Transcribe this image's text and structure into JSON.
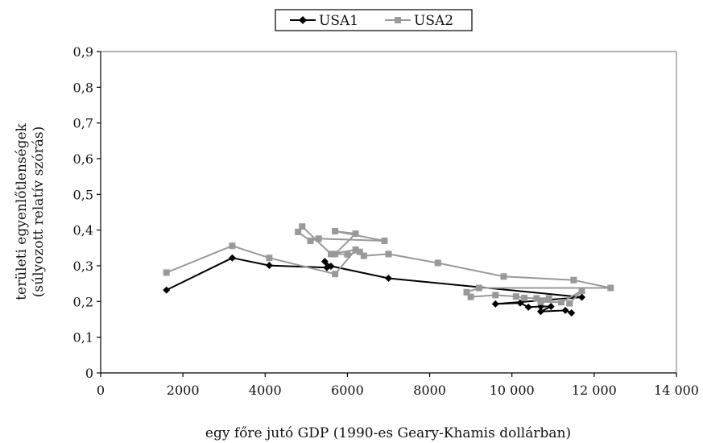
{
  "chart_data": {
    "type": "line",
    "xlabel": "egy főre jutó GDP (1990-es Geary-Khamis dollárban)",
    "ylabel_line1": "területi egyenlőtlenségek",
    "ylabel_line2": "(súlyozott relatív szórás)",
    "xlim": [
      0,
      14000
    ],
    "ylim": [
      0,
      0.9
    ],
    "x_ticks": [
      0,
      2000,
      4000,
      6000,
      8000,
      10000,
      12000,
      14000
    ],
    "x_tick_labels": [
      "0",
      "2000",
      "4000",
      "6000",
      "8000",
      "10 000",
      "12 000",
      "14 000"
    ],
    "y_ticks": [
      0,
      0.1,
      0.2,
      0.3,
      0.4,
      0.5,
      0.6,
      0.7,
      0.8,
      0.9
    ],
    "y_tick_labels": [
      "0",
      "0,1",
      "0,2",
      "0,3",
      "0,4",
      "0,5",
      "0,6",
      "0,7",
      "0,8",
      "0,9"
    ],
    "grid": false,
    "legend_position": "top-center",
    "series": [
      {
        "name": "USA1",
        "color": "#000000",
        "marker": "diamond",
        "points": [
          [
            1600,
            0.232
          ],
          [
            3200,
            0.322
          ],
          [
            4100,
            0.301
          ],
          [
            5500,
            0.295
          ],
          [
            5450,
            0.312
          ],
          [
            5600,
            0.299
          ],
          [
            7000,
            0.265
          ],
          [
            11700,
            0.212
          ],
          [
            9600,
            0.193
          ],
          [
            10200,
            0.196
          ],
          [
            10400,
            0.184
          ],
          [
            10700,
            0.186
          ],
          [
            10950,
            0.186
          ],
          [
            10700,
            0.172
          ],
          [
            11300,
            0.175
          ],
          [
            11450,
            0.168
          ]
        ]
      },
      {
        "name": "USA2",
        "color": "#999999",
        "marker": "square",
        "points": [
          [
            1600,
            0.281
          ],
          [
            3200,
            0.356
          ],
          [
            4100,
            0.322
          ],
          [
            5700,
            0.277
          ],
          [
            6200,
            0.345
          ],
          [
            5600,
            0.333
          ],
          [
            4900,
            0.41
          ],
          [
            4800,
            0.395
          ],
          [
            5100,
            0.37
          ],
          [
            5300,
            0.376
          ],
          [
            6900,
            0.37
          ],
          [
            5700,
            0.397
          ],
          [
            6200,
            0.39
          ],
          [
            5700,
            0.333
          ],
          [
            6000,
            0.332
          ],
          [
            6300,
            0.339
          ],
          [
            6400,
            0.328
          ],
          [
            7000,
            0.333
          ],
          [
            8200,
            0.308
          ],
          [
            9800,
            0.27
          ],
          [
            11500,
            0.26
          ],
          [
            12400,
            0.238
          ],
          [
            9200,
            0.238
          ],
          [
            8900,
            0.226
          ],
          [
            9000,
            0.213
          ],
          [
            9600,
            0.218
          ],
          [
            10100,
            0.214
          ],
          [
            10300,
            0.21
          ],
          [
            10600,
            0.209
          ],
          [
            10900,
            0.209
          ],
          [
            10700,
            0.199
          ],
          [
            11200,
            0.198
          ],
          [
            11700,
            0.23
          ],
          [
            11400,
            0.195
          ]
        ]
      }
    ]
  }
}
